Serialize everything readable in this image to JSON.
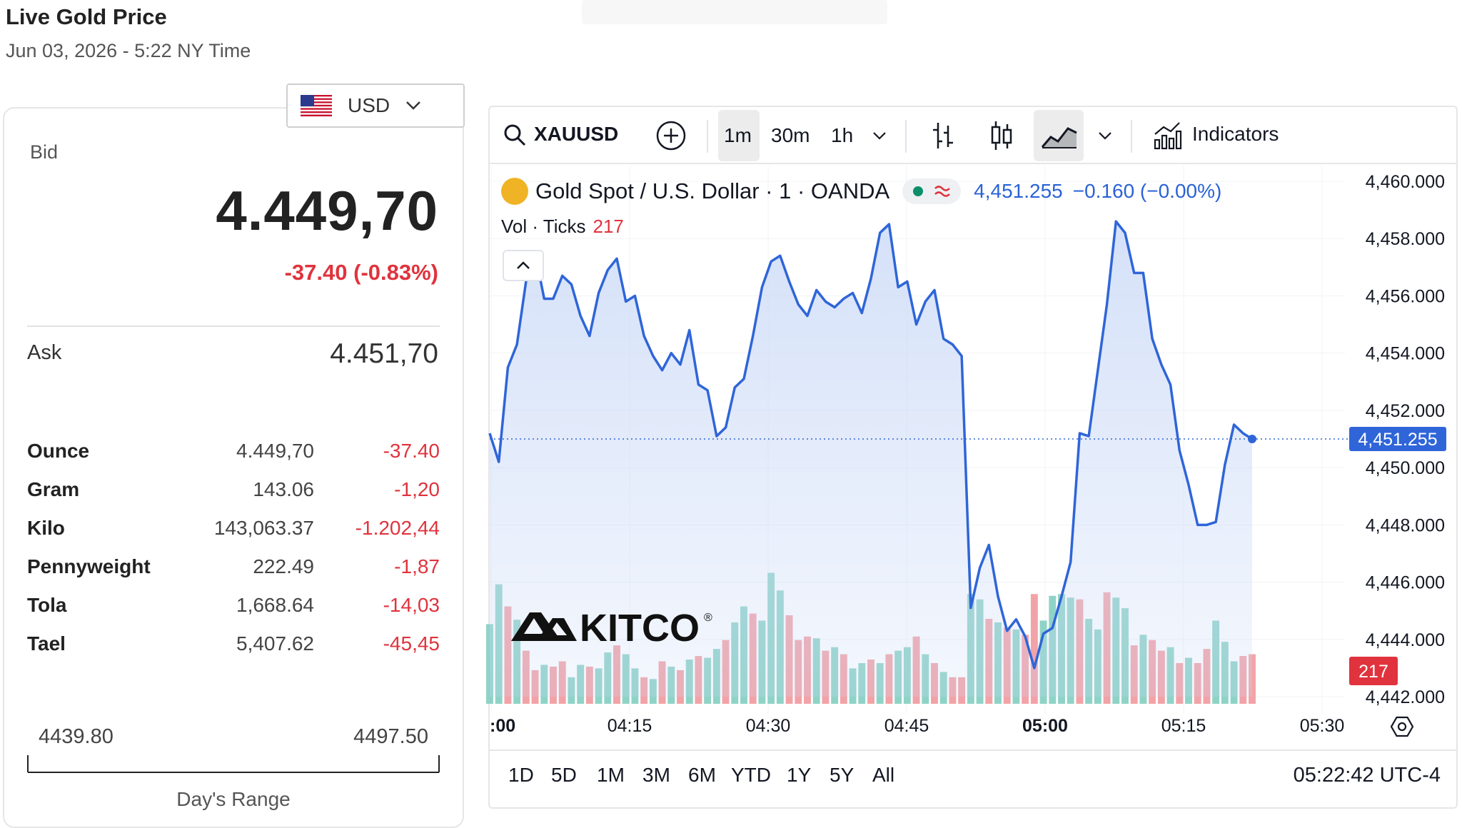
{
  "header": {
    "title": "Live Gold Price",
    "datetime": "Jun 03, 2026 - 5:22 NY Time"
  },
  "currency_selector": {
    "value": "USD",
    "flag_icon": "us-flag-icon"
  },
  "quote": {
    "bid_label": "Bid",
    "bid": "4.449,70",
    "change": "-37.40 (-0.83%)",
    "ask_label": "Ask",
    "ask": "4.451,70"
  },
  "units": [
    {
      "name": "Ounce",
      "price": "4.449,70",
      "change": "-37.40"
    },
    {
      "name": "Gram",
      "price": "143.06",
      "change": "-1,20"
    },
    {
      "name": "Kilo",
      "price": "143,063.37",
      "change": "-1.202,44"
    },
    {
      "name": "Pennyweight",
      "price": "222.49",
      "change": "-1,87"
    },
    {
      "name": "Tola",
      "price": "1,668.64",
      "change": "-14,03"
    },
    {
      "name": "Tael",
      "price": "5,407.62",
      "change": "-45,45"
    }
  ],
  "days_range": {
    "low": "4439.80",
    "high": "4497.50",
    "label": "Day's Range"
  },
  "toolbar": {
    "symbol": "XAUUSD",
    "intervals": [
      "1m",
      "30m",
      "1h"
    ],
    "active_interval": "1m",
    "indicators_label": "Indicators"
  },
  "legend": {
    "instrument": "Gold Spot / U.S. Dollar · 1 · OANDA",
    "last": "4,451.255",
    "change": "−0.160 (−0.00%)",
    "vol_label": "Vol · Ticks",
    "vol_value": "217"
  },
  "watermark": {
    "text": "KITCO",
    "mark": "®"
  },
  "range_buttons": [
    "1D",
    "5D",
    "1M",
    "3M",
    "6M",
    "YTD",
    "1Y",
    "5Y",
    "All"
  ],
  "clock": "05:22:42 UTC-4",
  "colors": {
    "line": "#2f65d8",
    "area_top": "#cbdaf7",
    "vol_up": "#8fd3c7",
    "vol_down": "#f2a3a7",
    "negative": "#e0333d",
    "price_tag": "#2f65d8"
  },
  "chart_data": {
    "type": "line",
    "x_ticks": [
      ":00",
      "04:15",
      "04:30",
      "04:45",
      "05:00",
      "05:15",
      "05:30"
    ],
    "y_ticks": [
      "4,460.000",
      "4,458.000",
      "4,456.000",
      "4,454.000",
      "4,452.000",
      "4,450.000",
      "4,448.000",
      "4,446.000",
      "4,444.000",
      "4,442.000"
    ],
    "ylim": [
      4442,
      4460
    ],
    "last_price_label": "4,451.255",
    "volume_last_label": "217",
    "series": [
      {
        "values": [
          4451.2,
          4450.2,
          4453.5,
          4454.3,
          4456.5,
          4457.5,
          4455.9,
          4455.9,
          4456.7,
          4456.4,
          4455.3,
          4454.6,
          4456.1,
          4456.9,
          4457.3,
          4455.8,
          4456.0,
          4454.6,
          4453.9,
          4453.4,
          4454.0,
          4453.6,
          4454.8,
          4452.9,
          4452.7,
          4451.1,
          4451.4,
          4452.8,
          4453.1,
          4454.6,
          4456.3,
          4457.2,
          4457.4,
          4456.5,
          4455.7,
          4455.3,
          4456.2,
          4455.8,
          4455.6,
          4455.9,
          4456.1,
          4455.4,
          4456.6,
          4458.2,
          4458.5,
          4456.3,
          4456.5,
          4455.0,
          4455.8,
          4456.2,
          4454.5,
          4454.3,
          4453.9,
          4445.1,
          4446.5,
          4447.3,
          4445.5,
          4444.3,
          4444.7,
          4444.1,
          4443.0,
          4444.2,
          4444.4,
          4445.5,
          4446.7,
          4451.2,
          4451.1,
          4453.4,
          4455.7,
          4458.6,
          4458.2,
          4456.8,
          4456.8,
          4454.5,
          4453.6,
          4452.9,
          4450.6,
          4449.4,
          4448.0,
          4448.0,
          4448.1,
          4450.1,
          4451.5,
          4451.2,
          4451.0
        ],
        "volume_up": [
          true,
          true,
          false,
          true,
          false,
          false,
          true,
          false,
          false,
          true,
          true,
          false,
          true,
          true,
          false,
          true,
          true,
          false,
          true,
          false,
          true,
          false,
          true,
          false,
          true,
          true,
          false,
          true,
          true,
          false,
          true,
          true,
          true,
          false,
          false,
          false,
          true,
          false,
          true,
          false,
          true,
          true,
          false,
          true,
          false,
          true,
          true,
          false,
          true,
          false,
          true,
          false,
          false,
          true,
          true,
          false,
          true,
          false,
          true,
          false,
          false,
          true,
          true,
          true,
          true,
          false,
          true,
          true,
          false,
          true,
          true,
          false,
          true,
          false,
          false,
          true,
          false,
          true,
          false,
          false,
          true,
          true,
          true,
          false,
          false
        ],
        "volume": [
          90,
          135,
          110,
          95,
          60,
          38,
          44,
          42,
          48,
          30,
          44,
          42,
          40,
          58,
          66,
          56,
          40,
          30,
          28,
          48,
          42,
          38,
          50,
          54,
          52,
          62,
          72,
          92,
          110,
          102,
          94,
          148,
          128,
          100,
          72,
          76,
          74,
          60,
          64,
          56,
          40,
          46,
          50,
          46,
          56,
          60,
          64,
          76,
          56,
          46,
          36,
          30,
          30,
          124,
          118,
          96,
          92,
          86,
          84,
          78,
          124,
          94,
          122,
          124,
          120,
          118,
          96,
          84,
          126,
          120,
          108,
          66,
          78,
          72,
          60,
          64,
          46,
          52,
          46,
          62,
          94,
          70,
          48,
          54,
          56
        ]
      }
    ]
  }
}
